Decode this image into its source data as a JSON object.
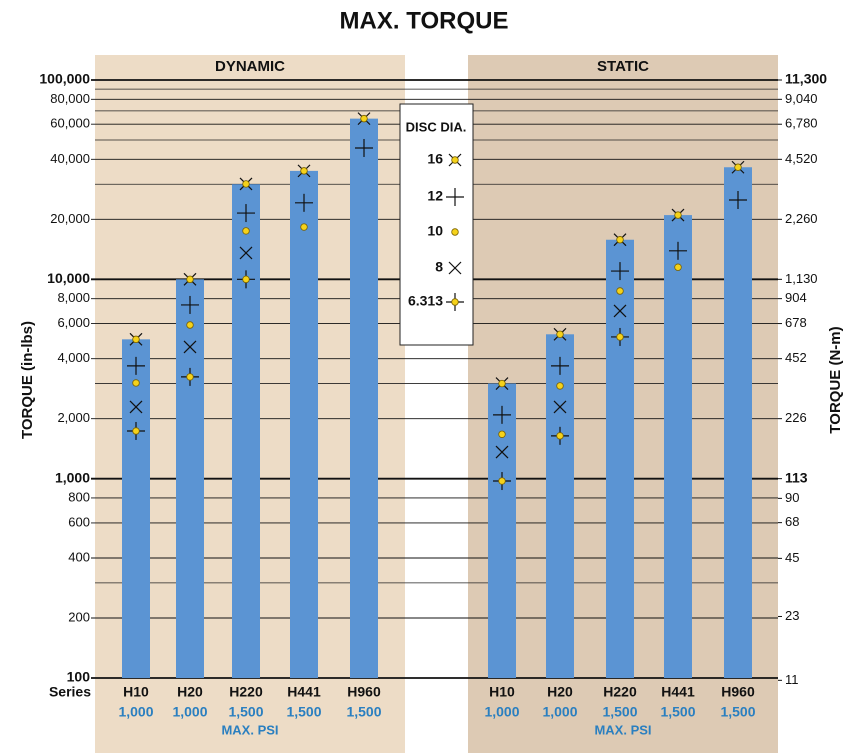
{
  "chart_data": {
    "type": "bar",
    "title": "MAX. TORQUE",
    "ylabel": "TORQUE (in-lbs)",
    "y2label": "TORQUE (N-m)",
    "log_scale": true,
    "ylim": [
      100,
      100000
    ],
    "yticks": [
      100,
      200,
      400,
      600,
      800,
      {
        "value": 1000,
        "label": "1,000"
      },
      {
        "value": 2000,
        "label": "2,000"
      },
      {
        "value": 4000,
        "label": "4,000"
      },
      {
        "value": 6000,
        "label": "6,000"
      },
      {
        "value": 8000,
        "label": "8,000"
      },
      {
        "value": 10000,
        "label": "10,000"
      },
      {
        "value": 20000,
        "label": "20,000"
      },
      {
        "value": 40000,
        "label": "40,000"
      },
      {
        "value": 60000,
        "label": "60,000"
      },
      {
        "value": 80000,
        "label": "80,000"
      },
      {
        "value": 100000,
        "label": "100,000"
      }
    ],
    "minor_gridlines": [
      300,
      3000,
      30000,
      50000,
      70000,
      90000
    ],
    "y2lim": [
      11.3,
      11300
    ],
    "y2ticks": [
      11,
      23,
      45,
      68,
      90,
      113,
      226,
      452,
      678,
      904,
      {
        "value": 1130,
        "label": "1,130"
      },
      {
        "value": 2260,
        "label": "2,260"
      },
      {
        "value": 4520,
        "label": "4,520"
      },
      {
        "value": 6780,
        "label": "6,780"
      },
      {
        "value": 9040,
        "label": "9,040"
      },
      {
        "value": 11300,
        "label": "11,300"
      }
    ],
    "bar_color": "#5b94d3",
    "category_label": "Series",
    "pressure_label": "MAX. PSI",
    "pressure_color": "#2a7fc0",
    "legend_title": "DISC DIA.",
    "panels": [
      {
        "name": "DYNAMIC",
        "background": "#eddcc6",
        "categories": [
          "H10",
          "H20",
          "H220",
          "H441",
          "H960"
        ],
        "pressures": [
          "1,000",
          "1,000",
          "1,500",
          "1,500",
          "1,500"
        ],
        "values": [
          5000,
          10000,
          30000,
          35000,
          64000
        ],
        "series": [
          {
            "name": "16",
            "marker": "x-dot",
            "values": [
              5000,
              10000,
              30100,
              35000,
              64000
            ]
          },
          {
            "name": "12",
            "marker": "plus",
            "values": [
              3680,
              7440,
              21500,
              24200,
              45600
            ]
          },
          {
            "name": "10",
            "marker": "dot",
            "values": [
              3020,
              5900,
              17500,
              18300,
              null
            ]
          },
          {
            "name": "8",
            "marker": "x",
            "values": [
              2290,
              4580,
              13560,
              null,
              null
            ]
          },
          {
            "name": "6.313",
            "marker": "plus-dot",
            "values": [
              1735,
              3240,
              10000,
              null,
              null
            ]
          }
        ]
      },
      {
        "name": "STATIC",
        "background": "#ddcab4",
        "categories": [
          "H10",
          "H20",
          "H220",
          "H441",
          "H960"
        ],
        "pressures": [
          "1,000",
          "1,000",
          "1,500",
          "1,500",
          "1,500"
        ],
        "values": [
          3000,
          5300,
          15800,
          21000,
          36500
        ],
        "series": [
          {
            "name": "16",
            "marker": "x-dot",
            "values": [
              3000,
              5300,
              15800,
              21000,
              36500
            ]
          },
          {
            "name": "12",
            "marker": "plus",
            "values": [
              2090,
              3680,
              11000,
              13900,
              25000
            ]
          },
          {
            "name": "10",
            "marker": "dot",
            "values": [
              1670,
              2920,
              8740,
              11500,
              null
            ]
          },
          {
            "name": "8",
            "marker": "x",
            "values": [
              1360,
              2290,
              6940,
              null,
              null
            ]
          },
          {
            "name": "6.313",
            "marker": "plus-dot",
            "values": [
              973,
              1640,
              5140,
              null,
              null
            ]
          }
        ]
      }
    ]
  }
}
